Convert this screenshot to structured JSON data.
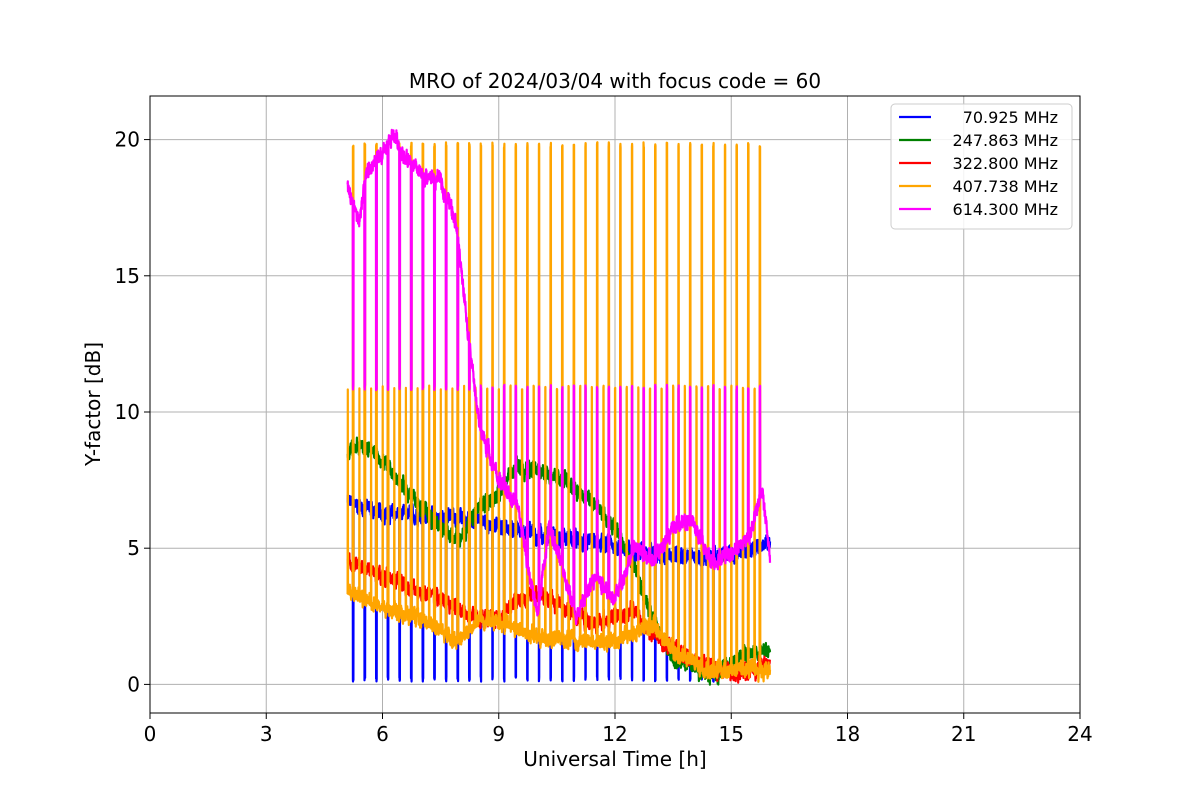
{
  "chart_data": {
    "type": "line",
    "title": "MRO of 2024/03/04 with focus code = 60",
    "xlabel": "Universal Time [h]",
    "ylabel": "Y-factor [dB]",
    "xlim": [
      0,
      24
    ],
    "ylim": [
      -1.05,
      21.6
    ],
    "xticks": [
      0,
      3,
      6,
      9,
      12,
      15,
      18,
      21,
      24
    ],
    "yticks": [
      0,
      5,
      10,
      15,
      20
    ],
    "grid": true,
    "legend_position": "top-right",
    "data_start": 5.1,
    "data_end": 16.0,
    "pulse_period": 0.3,
    "series": [
      {
        "name": "70.925 MHz",
        "color": "#0000ff",
        "baseline": [
          [
            5.1,
            6.7
          ],
          [
            6.0,
            6.3
          ],
          [
            7.0,
            6.2
          ],
          [
            8.0,
            6.1
          ],
          [
            9.0,
            5.8
          ],
          [
            10.0,
            5.5
          ],
          [
            11.0,
            5.3
          ],
          [
            12.0,
            5.1
          ],
          [
            13.0,
            4.8
          ],
          [
            14.0,
            4.6
          ],
          [
            15.0,
            4.8
          ],
          [
            16.0,
            5.2
          ]
        ],
        "pulse_level": 0.2,
        "pulse_end": 14.8
      },
      {
        "name": "247.863 MHz",
        "color": "#008000",
        "baseline": [
          [
            5.1,
            8.5
          ],
          [
            5.5,
            8.8
          ],
          [
            6.0,
            8.2
          ],
          [
            7.0,
            6.5
          ],
          [
            7.5,
            5.8
          ],
          [
            8.0,
            5.3
          ],
          [
            8.5,
            6.5
          ],
          [
            9.0,
            7.0
          ],
          [
            9.5,
            8.0
          ],
          [
            10.0,
            7.8
          ],
          [
            10.5,
            7.7
          ],
          [
            11.0,
            7.2
          ],
          [
            11.5,
            6.6
          ],
          [
            12.0,
            5.8
          ],
          [
            12.5,
            4.2
          ],
          [
            13.0,
            2.2
          ],
          [
            13.5,
            1.0
          ],
          [
            14.0,
            0.6
          ],
          [
            14.5,
            0.3
          ],
          [
            15.0,
            0.8
          ],
          [
            15.5,
            1.2
          ],
          [
            16.0,
            1.2
          ]
        ],
        "pulse_level": null
      },
      {
        "name": "322.800 MHz",
        "color": "#ff0000",
        "baseline": [
          [
            5.1,
            4.5
          ],
          [
            6.0,
            4.0
          ],
          [
            7.0,
            3.4
          ],
          [
            8.0,
            2.8
          ],
          [
            8.5,
            2.4
          ],
          [
            9.0,
            2.4
          ],
          [
            9.5,
            3.1
          ],
          [
            10.0,
            3.3
          ],
          [
            10.5,
            3.0
          ],
          [
            11.0,
            2.5
          ],
          [
            11.5,
            2.2
          ],
          [
            12.0,
            2.5
          ],
          [
            12.5,
            2.7
          ],
          [
            13.0,
            1.8
          ],
          [
            14.0,
            0.9
          ],
          [
            15.0,
            0.4
          ],
          [
            15.5,
            0.5
          ],
          [
            16.0,
            0.8
          ]
        ],
        "pulse_level": null
      },
      {
        "name": "407.738 MHz",
        "color": "#ffa500",
        "baseline": [
          [
            5.1,
            3.4
          ],
          [
            6.0,
            2.8
          ],
          [
            7.0,
            2.4
          ],
          [
            8.0,
            1.6
          ],
          [
            8.5,
            2.4
          ],
          [
            9.0,
            2.3
          ],
          [
            10.0,
            1.7
          ],
          [
            11.0,
            1.6
          ],
          [
            12.0,
            1.6
          ],
          [
            13.0,
            2.2
          ],
          [
            13.5,
            1.2
          ],
          [
            14.0,
            0.8
          ],
          [
            14.5,
            0.5
          ],
          [
            15.0,
            0.6
          ],
          [
            16.0,
            0.5
          ]
        ],
        "pulse_level": 19.8,
        "pulse_mid_level": 10.9,
        "pulse_end": 15.8
      },
      {
        "name": "614.300 MHz",
        "color": "#ff00ff",
        "baseline": [
          [
            5.1,
            18.2
          ],
          [
            5.4,
            17.0
          ],
          [
            5.6,
            18.8
          ],
          [
            6.0,
            19.4
          ],
          [
            6.3,
            20.2
          ],
          [
            6.6,
            19.3
          ],
          [
            7.0,
            18.7
          ],
          [
            7.5,
            18.5
          ],
          [
            7.9,
            17.0
          ],
          [
            8.2,
            13.0
          ],
          [
            8.5,
            9.5
          ],
          [
            9.0,
            7.5
          ],
          [
            9.5,
            6.5
          ],
          [
            9.8,
            4.0
          ],
          [
            10.0,
            2.5
          ],
          [
            10.3,
            5.8
          ],
          [
            10.7,
            4.0
          ],
          [
            11.0,
            2.5
          ],
          [
            11.5,
            4.0
          ],
          [
            12.0,
            3.2
          ],
          [
            12.5,
            5.0
          ],
          [
            13.0,
            4.5
          ],
          [
            13.5,
            5.8
          ],
          [
            14.0,
            6.0
          ],
          [
            14.5,
            4.5
          ],
          [
            15.0,
            4.8
          ],
          [
            15.5,
            5.5
          ],
          [
            15.8,
            7.2
          ],
          [
            16.0,
            4.6
          ]
        ],
        "pulse_level": 10.9,
        "pulse_end": 15.8
      }
    ]
  }
}
